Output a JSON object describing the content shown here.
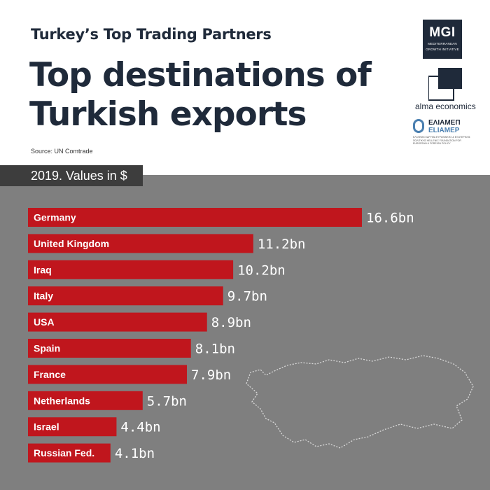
{
  "header": {
    "kicker": "Turkey’s Top Trading Partners",
    "title": "Top destinations of Turkish exports",
    "source": "Source: UN Comtrade"
  },
  "logos": {
    "mgi": {
      "abbr": "MGI",
      "line1": "MEDITERRANEAN",
      "line2": "GROWTH INITIATIVE"
    },
    "alma": "alma economics",
    "eliamep": {
      "name_gr": "ΕΛΙΑΜΕΠ",
      "name_gr2": "ELIAMEP",
      "fine_print": "ΕΛΛΗΝΙΚΟ ΙΔΡΥΜΑ ΕΥΡΩΠΑΪΚΗΣ & ΕΞΩΤΕΡΙΚΗΣ ΠΟΛΙΤΙΚΗΣ HELLENIC FOUNDATION FOR EUROPEAN & FOREIGN POLICY"
    }
  },
  "subtitle": "2019. Values in $",
  "colors": {
    "bar": "#c0161d",
    "chart_bg": "#7f7f7f",
    "subtitle_bg": "#3d3d3d",
    "title": "#1f2a3a",
    "map_outline": "#d9d9d9"
  },
  "chart_data": {
    "type": "bar",
    "orientation": "horizontal",
    "categories": [
      "Germany",
      "United Kingdom",
      "Iraq",
      "Italy",
      "USA",
      "Spain",
      "France",
      "Netherlands",
      "Israel",
      "Russian Fed."
    ],
    "values": [
      16.6,
      11.2,
      10.2,
      9.7,
      8.9,
      8.1,
      7.9,
      5.7,
      4.4,
      4.1
    ],
    "value_labels": [
      "16.6bn",
      "11.2bn",
      "10.2bn",
      "9.7bn",
      "8.9bn",
      "8.1bn",
      "7.9bn",
      "5.7bn",
      "4.4bn",
      "4.1bn"
    ],
    "unit": "bn $",
    "grid": false,
    "legend": "none"
  }
}
